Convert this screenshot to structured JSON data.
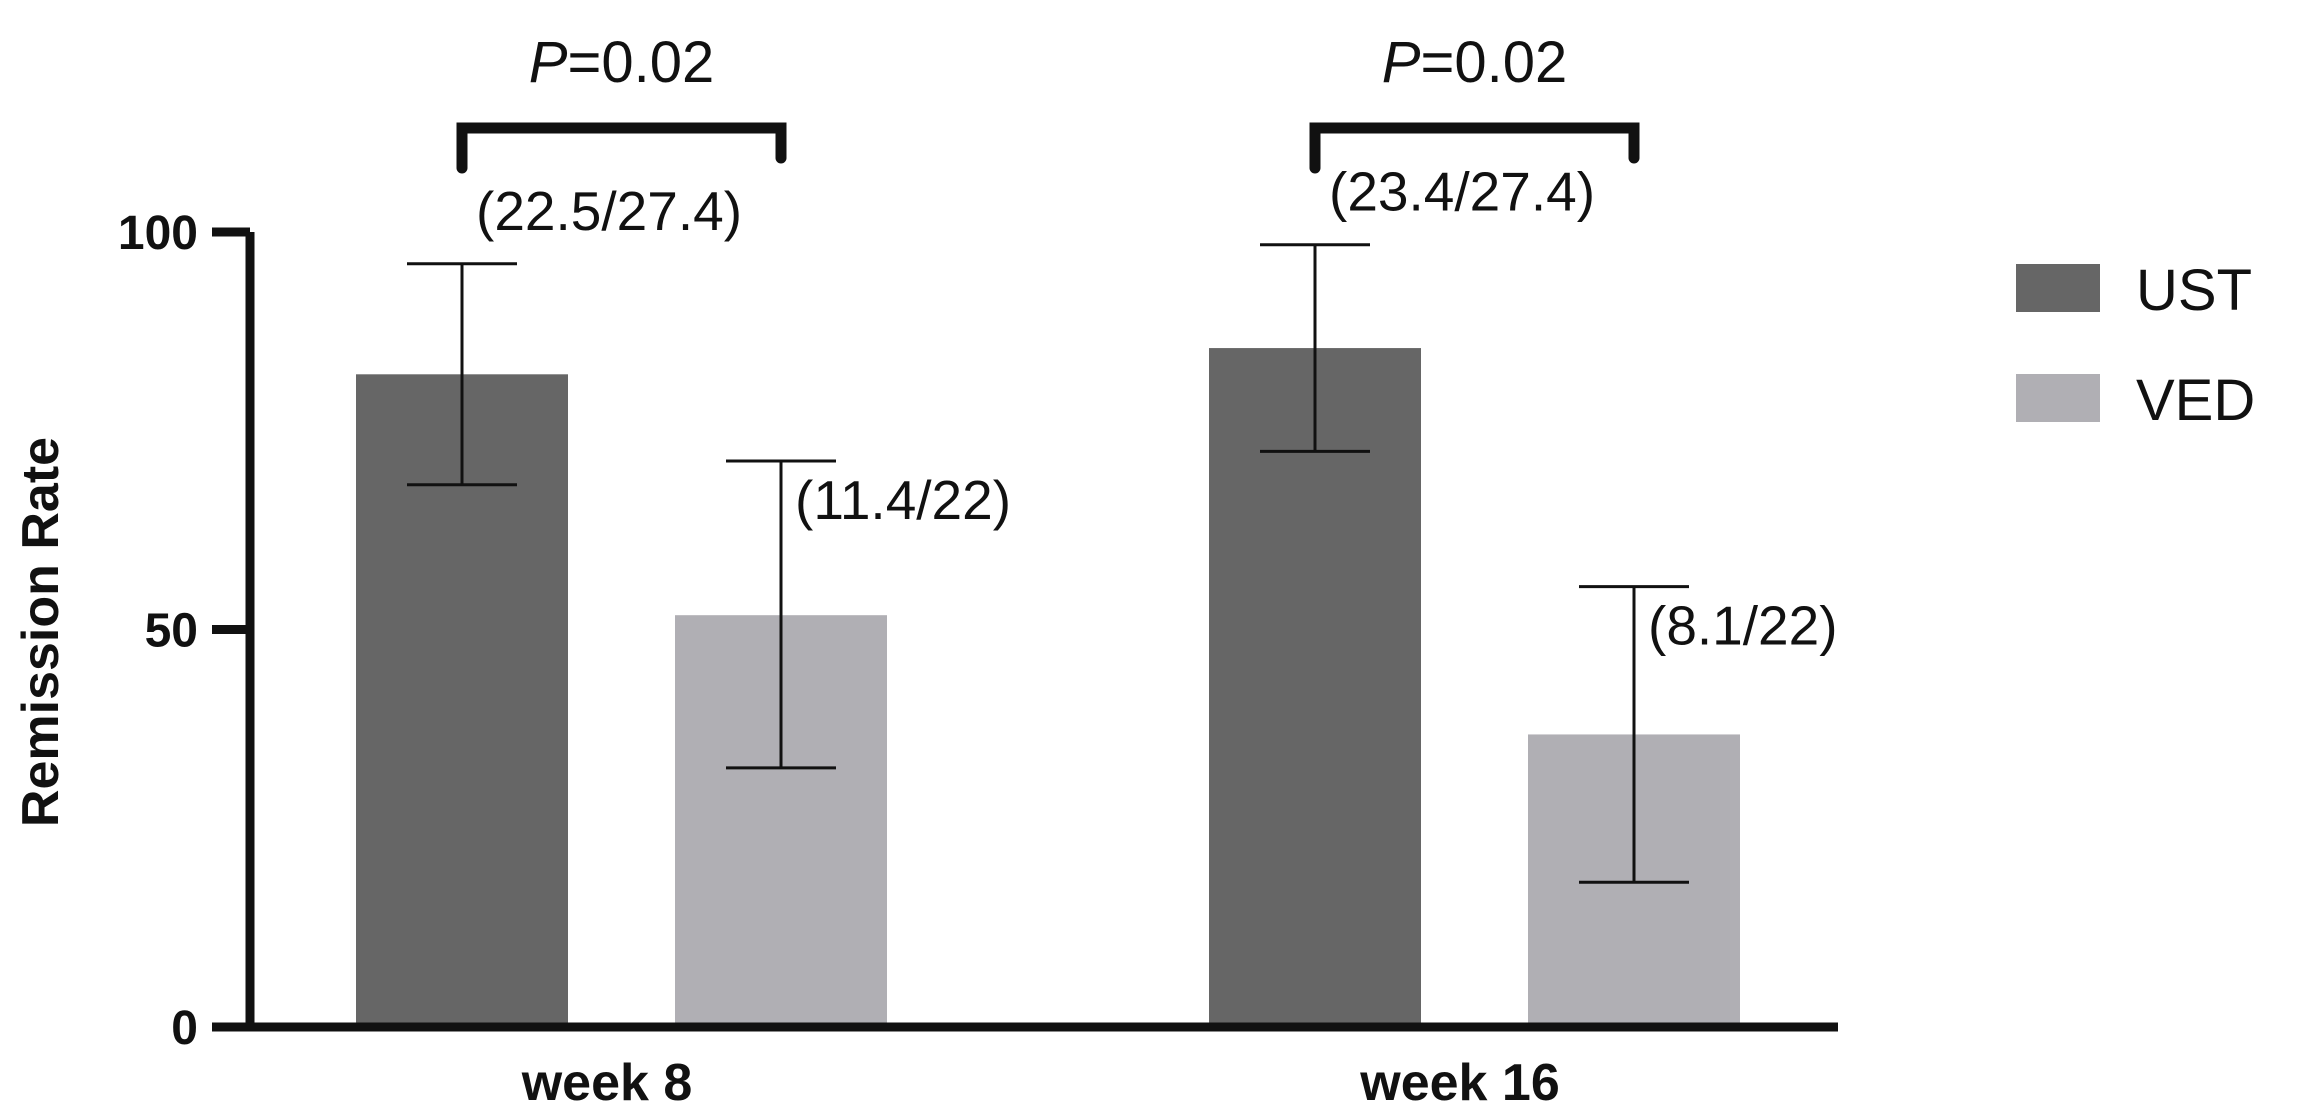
{
  "chart_data": {
    "type": "bar",
    "title": "",
    "xlabel": "",
    "ylabel": "Remission Rate",
    "ylim": [
      0,
      100
    ],
    "yticks": [
      0,
      50,
      100
    ],
    "grid": false,
    "legend_position": "top-right",
    "categories": [
      "week 8",
      "week 16"
    ],
    "series": [
      {
        "name": "UST",
        "color": "#666666",
        "values": [
          82.1,
          85.4
        ],
        "error_low": [
          68.2,
          72.4
        ],
        "error_high": [
          96.0,
          98.4
        ],
        "labels": [
          "(22.5/27.4)",
          "(23.4/27.4)"
        ]
      },
      {
        "name": "VED",
        "color": "#b0afb4",
        "values": [
          51.8,
          36.8
        ],
        "error_low": [
          32.6,
          18.2
        ],
        "error_high": [
          71.2,
          55.4
        ],
        "labels": [
          "(11.4/22)",
          "(8.1/22)"
        ]
      }
    ],
    "annotations": [
      {
        "category": "week 8",
        "p_symbol": "P",
        "p_value": "=0.02"
      },
      {
        "category": "week 16",
        "p_symbol": "P",
        "p_value": "=0.02"
      }
    ]
  }
}
